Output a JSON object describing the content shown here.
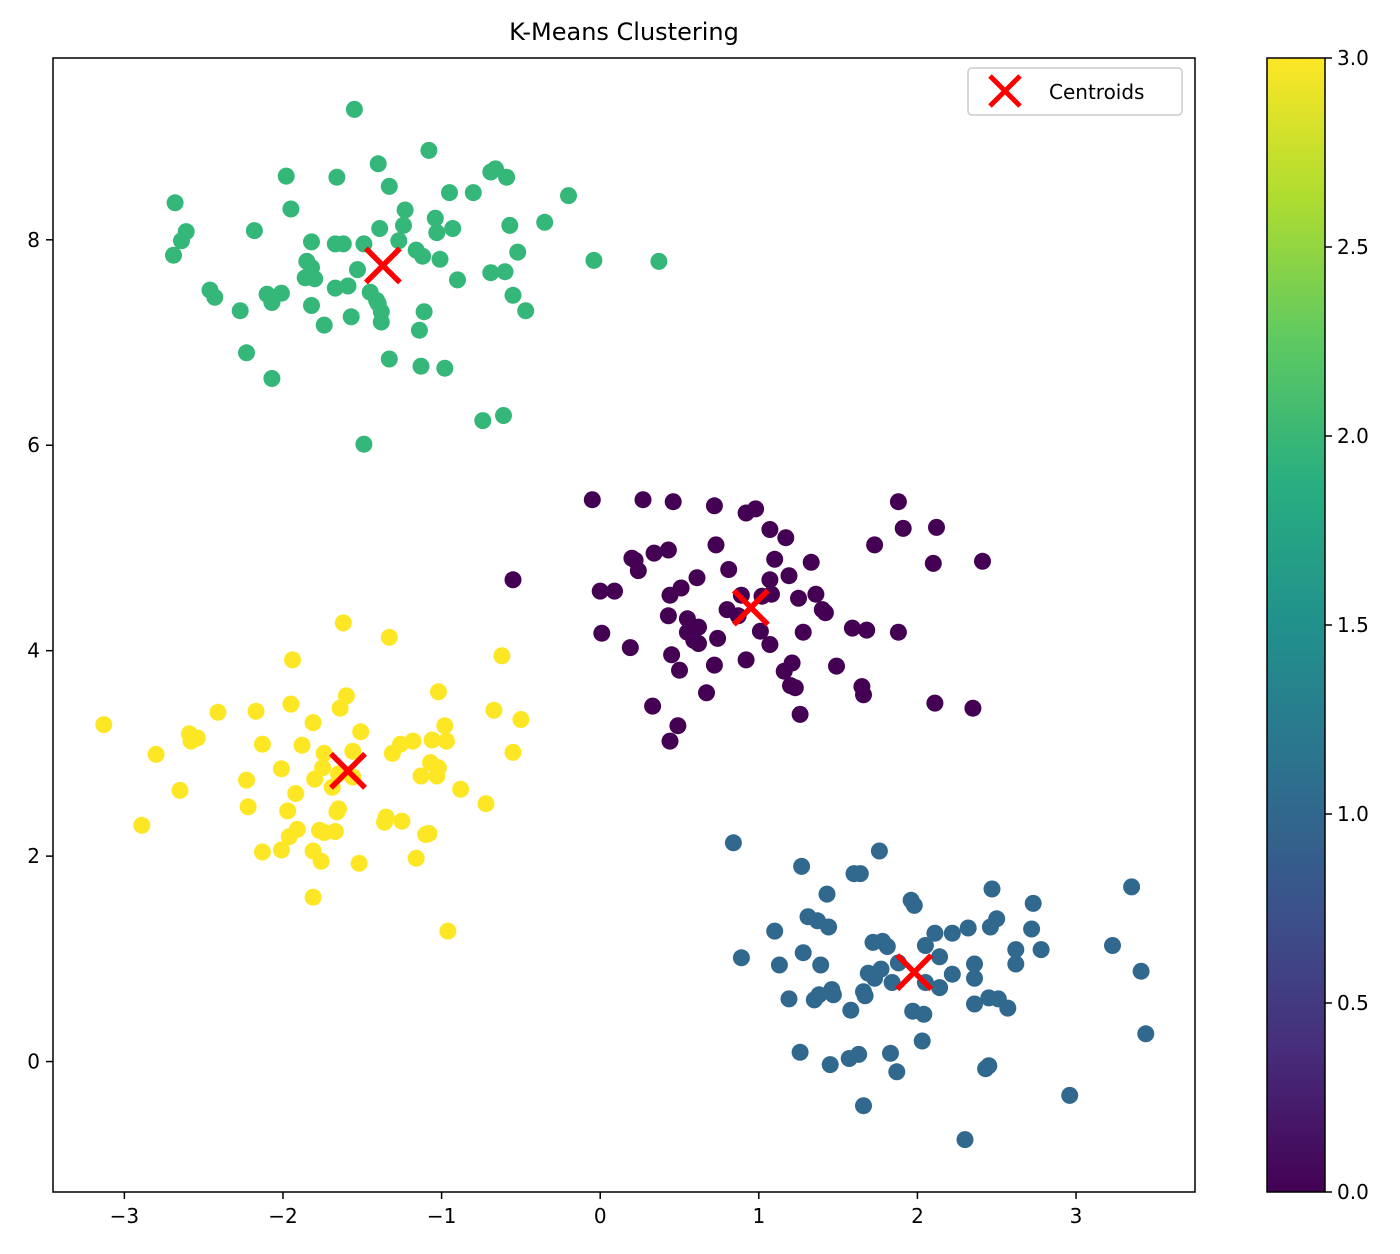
{
  "chart_data": {
    "type": "scatter",
    "title": "K-Means Clustering",
    "xlabel": "",
    "ylabel": "",
    "xlim": [
      -3.45,
      3.75
    ],
    "ylim": [
      -1.27,
      9.77
    ],
    "x_ticks": [
      -3,
      -2,
      -1,
      0,
      1,
      2,
      3
    ],
    "x_tick_labels": [
      "−3",
      "−2",
      "−1",
      "0",
      "1",
      "2",
      "3"
    ],
    "y_ticks": [
      0,
      2,
      4,
      6,
      8
    ],
    "y_tick_labels": [
      "0",
      "2",
      "4",
      "6",
      "8"
    ],
    "legend": {
      "position": "top-right",
      "entries": [
        "Centroids"
      ]
    },
    "grid": false,
    "colorbar": {
      "range": [
        0.0,
        3.0
      ],
      "ticks": [
        0.0,
        0.5,
        1.0,
        1.5,
        2.0,
        2.5,
        3.0
      ],
      "tick_labels": [
        "0.0",
        "0.5",
        "1.0",
        "1.5",
        "2.0",
        "2.5",
        "3.0"
      ],
      "colormap": "viridis"
    },
    "cluster_colors": [
      "#440154",
      "#31688e",
      "#35b779",
      "#fde725"
    ],
    "centroid_color": "#ff0000",
    "centroids": [
      {
        "cluster": 0,
        "x": 0.95,
        "y": 4.42
      },
      {
        "cluster": 1,
        "x": 1.98,
        "y": 0.87
      },
      {
        "cluster": 2,
        "x": -1.37,
        "y": 7.75
      },
      {
        "cluster": 3,
        "x": -1.59,
        "y": 2.83
      }
    ],
    "series": [
      {
        "name": "cluster 0",
        "label_value": 0,
        "points": [
          [
            -0.05,
            5.47
          ],
          [
            0.27,
            5.47
          ],
          [
            0.46,
            5.45
          ],
          [
            0.72,
            5.41
          ],
          [
            0.92,
            5.34
          ],
          [
            0.98,
            5.38
          ],
          [
            1.07,
            5.18
          ],
          [
            1.17,
            5.1
          ],
          [
            1.88,
            5.45
          ],
          [
            1.91,
            5.19
          ],
          [
            2.12,
            5.2
          ],
          [
            2.41,
            4.87
          ],
          [
            2.1,
            4.85
          ],
          [
            1.73,
            5.03
          ],
          [
            0.2,
            4.9
          ],
          [
            0.24,
            4.78
          ],
          [
            0.34,
            4.95
          ],
          [
            0.43,
            4.98
          ],
          [
            0.22,
            4.88
          ],
          [
            0.73,
            5.03
          ],
          [
            1.1,
            4.89
          ],
          [
            1.33,
            4.86
          ],
          [
            -0.55,
            4.69
          ],
          [
            0.0,
            4.58
          ],
          [
            0.09,
            4.58
          ],
          [
            0.44,
            4.54
          ],
          [
            0.51,
            4.61
          ],
          [
            0.61,
            4.71
          ],
          [
            0.81,
            4.79
          ],
          [
            1.07,
            4.69
          ],
          [
            1.19,
            4.73
          ],
          [
            1.36,
            4.55
          ],
          [
            1.25,
            4.51
          ],
          [
            0.43,
            4.34
          ],
          [
            0.55,
            4.31
          ],
          [
            0.8,
            4.4
          ],
          [
            0.89,
            4.54
          ],
          [
            1.02,
            4.53
          ],
          [
            1.08,
            4.55
          ],
          [
            0.62,
            4.23
          ],
          [
            0.87,
            4.34
          ],
          [
            0.01,
            4.17
          ],
          [
            0.55,
            4.18
          ],
          [
            0.59,
            4.1
          ],
          [
            0.74,
            4.12
          ],
          [
            1.01,
            4.19
          ],
          [
            1.28,
            4.18
          ],
          [
            1.42,
            4.37
          ],
          [
            1.4,
            4.4
          ],
          [
            1.59,
            4.22
          ],
          [
            1.68,
            4.2
          ],
          [
            1.88,
            4.18
          ],
          [
            1.07,
            4.06
          ],
          [
            0.19,
            4.03
          ],
          [
            0.45,
            3.96
          ],
          [
            0.62,
            4.07
          ],
          [
            0.72,
            3.86
          ],
          [
            0.92,
            3.91
          ],
          [
            1.16,
            3.8
          ],
          [
            1.21,
            3.88
          ],
          [
            1.49,
            3.85
          ],
          [
            0.5,
            3.81
          ],
          [
            1.2,
            3.66
          ],
          [
            1.23,
            3.64
          ],
          [
            1.65,
            3.65
          ],
          [
            1.66,
            3.57
          ],
          [
            0.67,
            3.59
          ],
          [
            0.33,
            3.46
          ],
          [
            1.26,
            3.38
          ],
          [
            0.49,
            3.27
          ],
          [
            0.44,
            3.12
          ],
          [
            2.11,
            3.49
          ],
          [
            2.35,
            3.44
          ]
        ]
      },
      {
        "name": "cluster 1",
        "label_value": 1,
        "points": [
          [
            0.84,
            2.13
          ],
          [
            1.27,
            1.9
          ],
          [
            1.76,
            2.05
          ],
          [
            1.6,
            1.83
          ],
          [
            1.64,
            1.83
          ],
          [
            1.43,
            1.63
          ],
          [
            1.96,
            1.57
          ],
          [
            1.98,
            1.52
          ],
          [
            2.47,
            1.68
          ],
          [
            2.5,
            1.39
          ],
          [
            2.46,
            1.31
          ],
          [
            2.73,
            1.54
          ],
          [
            3.35,
            1.7
          ],
          [
            1.1,
            1.27
          ],
          [
            1.31,
            1.41
          ],
          [
            1.37,
            1.37
          ],
          [
            1.44,
            1.31
          ],
          [
            1.72,
            1.16
          ],
          [
            1.78,
            1.17
          ],
          [
            1.81,
            1.12
          ],
          [
            2.11,
            1.25
          ],
          [
            2.22,
            1.25
          ],
          [
            2.32,
            1.3
          ],
          [
            2.14,
            1.02
          ],
          [
            2.05,
            1.13
          ],
          [
            2.62,
            1.09
          ],
          [
            2.78,
            1.09
          ],
          [
            2.72,
            1.29
          ],
          [
            3.23,
            1.13
          ],
          [
            0.89,
            1.01
          ],
          [
            1.13,
            0.94
          ],
          [
            1.28,
            1.06
          ],
          [
            1.39,
            0.94
          ],
          [
            1.69,
            0.86
          ],
          [
            1.73,
            0.81
          ],
          [
            1.77,
            0.9
          ],
          [
            1.84,
            0.77
          ],
          [
            1.88,
            0.96
          ],
          [
            2.05,
            0.77
          ],
          [
            2.14,
            0.72
          ],
          [
            2.22,
            0.85
          ],
          [
            2.36,
            0.81
          ],
          [
            2.36,
            0.95
          ],
          [
            2.62,
            0.95
          ],
          [
            3.41,
            0.88
          ],
          [
            1.19,
            0.61
          ],
          [
            1.35,
            0.6
          ],
          [
            1.38,
            0.65
          ],
          [
            1.46,
            0.7
          ],
          [
            1.47,
            0.65
          ],
          [
            1.58,
            0.5
          ],
          [
            1.67,
            0.64
          ],
          [
            1.66,
            0.68
          ],
          [
            1.97,
            0.49
          ],
          [
            2.04,
            0.46
          ],
          [
            2.36,
            0.56
          ],
          [
            2.45,
            0.62
          ],
          [
            2.51,
            0.61
          ],
          [
            2.57,
            0.52
          ],
          [
            1.26,
            0.09
          ],
          [
            1.57,
            0.03
          ],
          [
            1.63,
            0.07
          ],
          [
            1.83,
            0.08
          ],
          [
            2.03,
            0.2
          ],
          [
            1.45,
            -0.03
          ],
          [
            1.87,
            -0.1
          ],
          [
            2.43,
            -0.07
          ],
          [
            2.45,
            -0.04
          ],
          [
            1.66,
            -0.43
          ],
          [
            2.96,
            -0.33
          ],
          [
            2.3,
            -0.76
          ],
          [
            3.44,
            0.27
          ]
        ]
      },
      {
        "name": "cluster 2",
        "label_value": 2,
        "points": [
          [
            -1.55,
            9.27
          ],
          [
            -1.08,
            8.87
          ],
          [
            -1.4,
            8.74
          ],
          [
            -0.69,
            8.66
          ],
          [
            -0.66,
            8.69
          ],
          [
            -0.59,
            8.61
          ],
          [
            -1.98,
            8.62
          ],
          [
            -1.66,
            8.61
          ],
          [
            -1.33,
            8.52
          ],
          [
            -0.8,
            8.46
          ],
          [
            -0.95,
            8.46
          ],
          [
            -0.2,
            8.43
          ],
          [
            -2.68,
            8.36
          ],
          [
            -1.95,
            8.3
          ],
          [
            -1.23,
            8.29
          ],
          [
            -1.04,
            8.21
          ],
          [
            -2.61,
            8.08
          ],
          [
            -2.18,
            8.09
          ],
          [
            -1.39,
            8.11
          ],
          [
            -1.24,
            8.14
          ],
          [
            -1.03,
            8.07
          ],
          [
            -0.93,
            8.11
          ],
          [
            -0.57,
            8.14
          ],
          [
            -0.35,
            8.17
          ],
          [
            -2.64,
            7.99
          ],
          [
            -1.82,
            7.98
          ],
          [
            -1.67,
            7.96
          ],
          [
            -1.62,
            7.96
          ],
          [
            -1.49,
            7.96
          ],
          [
            -1.27,
            7.99
          ],
          [
            -1.16,
            7.9
          ],
          [
            -1.12,
            7.84
          ],
          [
            -1.01,
            7.81
          ],
          [
            -0.52,
            7.88
          ],
          [
            -0.04,
            7.8
          ],
          [
            0.37,
            7.79
          ],
          [
            -2.69,
            7.85
          ],
          [
            -1.85,
            7.79
          ],
          [
            -1.82,
            7.73
          ],
          [
            -1.8,
            7.62
          ],
          [
            -1.86,
            7.63
          ],
          [
            -1.53,
            7.71
          ],
          [
            -0.9,
            7.61
          ],
          [
            -0.69,
            7.68
          ],
          [
            -0.6,
            7.69
          ],
          [
            -2.46,
            7.51
          ],
          [
            -2.43,
            7.44
          ],
          [
            -2.1,
            7.47
          ],
          [
            -2.07,
            7.39
          ],
          [
            -2.01,
            7.48
          ],
          [
            -1.67,
            7.53
          ],
          [
            -1.59,
            7.55
          ],
          [
            -1.45,
            7.49
          ],
          [
            -1.41,
            7.41
          ],
          [
            -1.82,
            7.36
          ],
          [
            -0.55,
            7.46
          ],
          [
            -2.27,
            7.31
          ],
          [
            -1.38,
            7.3
          ],
          [
            -1.38,
            7.2
          ],
          [
            -1.57,
            7.25
          ],
          [
            -1.74,
            7.17
          ],
          [
            -1.11,
            7.3
          ],
          [
            -1.14,
            7.12
          ],
          [
            -0.47,
            7.31
          ],
          [
            -2.23,
            6.9
          ],
          [
            -1.33,
            6.84
          ],
          [
            -1.13,
            6.77
          ],
          [
            -0.98,
            6.75
          ],
          [
            -2.07,
            6.65
          ],
          [
            -0.74,
            6.24
          ],
          [
            -0.61,
            6.29
          ],
          [
            -1.49,
            6.01
          ],
          [
            -1.4,
            7.38
          ]
        ]
      },
      {
        "name": "cluster 3",
        "label_value": 3,
        "points": [
          [
            -1.62,
            4.27
          ],
          [
            -1.33,
            4.13
          ],
          [
            -0.62,
            3.95
          ],
          [
            -1.94,
            3.91
          ],
          [
            -1.6,
            3.56
          ],
          [
            -1.95,
            3.48
          ],
          [
            -2.41,
            3.4
          ],
          [
            -2.17,
            3.41
          ],
          [
            -1.64,
            3.44
          ],
          [
            -1.02,
            3.6
          ],
          [
            -0.67,
            3.42
          ],
          [
            -0.5,
            3.33
          ],
          [
            -3.13,
            3.28
          ],
          [
            -2.59,
            3.19
          ],
          [
            -2.58,
            3.12
          ],
          [
            -2.54,
            3.15
          ],
          [
            -1.81,
            3.3
          ],
          [
            -1.51,
            3.21
          ],
          [
            -0.98,
            3.27
          ],
          [
            -2.13,
            3.09
          ],
          [
            -1.88,
            3.08
          ],
          [
            -1.74,
            3.0
          ],
          [
            -1.56,
            3.02
          ],
          [
            -1.31,
            3.0
          ],
          [
            -1.26,
            3.09
          ],
          [
            -1.18,
            3.12
          ],
          [
            -1.06,
            3.13
          ],
          [
            -0.97,
            3.12
          ],
          [
            -0.55,
            3.01
          ],
          [
            -2.8,
            2.99
          ],
          [
            -2.01,
            2.85
          ],
          [
            -1.75,
            2.86
          ],
          [
            -1.65,
            2.8
          ],
          [
            -1.56,
            2.77
          ],
          [
            -1.13,
            2.78
          ],
          [
            -1.07,
            2.91
          ],
          [
            -1.02,
            2.86
          ],
          [
            -1.03,
            2.78
          ],
          [
            -1.8,
            2.75
          ],
          [
            -2.23,
            2.74
          ],
          [
            -2.65,
            2.64
          ],
          [
            -1.92,
            2.61
          ],
          [
            -1.69,
            2.67
          ],
          [
            -1.65,
            2.46
          ],
          [
            -2.22,
            2.48
          ],
          [
            -1.97,
            2.44
          ],
          [
            -1.66,
            2.43
          ],
          [
            -0.88,
            2.65
          ],
          [
            -0.72,
            2.51
          ],
          [
            -2.89,
            2.3
          ],
          [
            -1.91,
            2.26
          ],
          [
            -1.74,
            2.23
          ],
          [
            -1.77,
            2.25
          ],
          [
            -1.67,
            2.24
          ],
          [
            -1.35,
            2.38
          ],
          [
            -1.36,
            2.33
          ],
          [
            -1.25,
            2.34
          ],
          [
            -1.1,
            2.21
          ],
          [
            -1.08,
            2.22
          ],
          [
            -1.96,
            2.19
          ],
          [
            -2.13,
            2.04
          ],
          [
            -2.01,
            2.06
          ],
          [
            -1.81,
            2.05
          ],
          [
            -1.76,
            1.95
          ],
          [
            -1.52,
            1.93
          ],
          [
            -1.16,
            1.98
          ],
          [
            -1.81,
            1.6
          ],
          [
            -0.96,
            1.27
          ]
        ]
      }
    ]
  }
}
